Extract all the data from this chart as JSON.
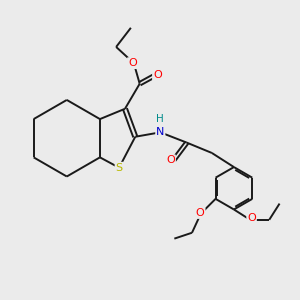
{
  "bg_color": "#ebebeb",
  "bond_color": "#1a1a1a",
  "S_color": "#b8b800",
  "O_color": "#ff0000",
  "N_color": "#0000cc",
  "H_color": "#008b8b",
  "lw": 1.4,
  "dbs": 0.035,
  "fs": 7.5,
  "xlim": [
    0,
    10
  ],
  "ylim": [
    0,
    10
  ]
}
